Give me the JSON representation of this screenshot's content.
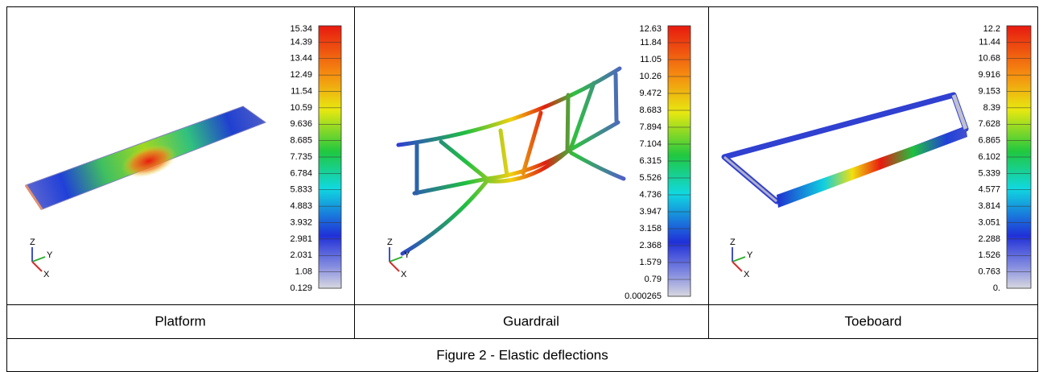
{
  "panels": [
    {
      "colorbar_labels": [
        "15.34",
        "14.39",
        "13.44",
        "12.49",
        "11.54",
        "10.59",
        "9.636",
        "8.685",
        "7.735",
        "6.784",
        "5.833",
        "4.883",
        "3.932",
        "2.981",
        "2.031",
        "1.08",
        "0.129"
      ],
      "axes": [
        "Z",
        "Y",
        "X"
      ],
      "caption": "Platform"
    },
    {
      "colorbar_labels": [
        "12.63",
        "11.84",
        "11.05",
        "10.26",
        "9.472",
        "8.683",
        "7.894",
        "7.104",
        "6.315",
        "5.526",
        "4.736",
        "3.947",
        "3.158",
        "2.368",
        "1.579",
        "0.79",
        "0.000265"
      ],
      "axes": [
        "Z",
        "Y",
        "X"
      ],
      "caption": "Guardrail"
    },
    {
      "colorbar_labels": [
        "12.2",
        "11.44",
        "10.68",
        "9.916",
        "9.153",
        "8.39",
        "7.628",
        "6.865",
        "6.102",
        "5.339",
        "4.577",
        "3.814",
        "3.051",
        "2.288",
        "1.526",
        "0.763",
        "0."
      ],
      "axes": [
        "Z",
        "Y",
        "X"
      ],
      "caption": "Toeboard"
    }
  ],
  "figure_caption": "Figure 2 - Elastic deflections"
}
